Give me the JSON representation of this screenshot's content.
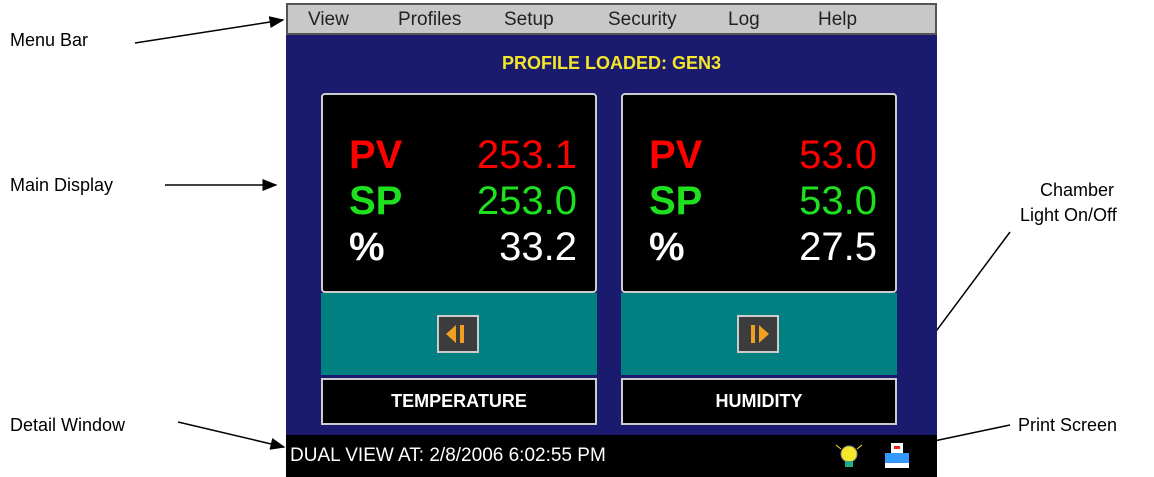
{
  "menu": [
    "View",
    "Profiles",
    "Setup",
    "Security",
    "Log",
    "Help"
  ],
  "profile_title": "PROFILE LOADED: GEN3",
  "panels": [
    {
      "pv_label": "PV",
      "pv": "253.1",
      "sp_label": "SP",
      "sp": "253.0",
      "pct_label": "%",
      "pct": "33.2",
      "name": "TEMPERATURE"
    },
    {
      "pv_label": "PV",
      "pv": "53.0",
      "sp_label": "SP",
      "sp": "53.0",
      "pct_label": "%",
      "pct": "27.5",
      "name": "HUMIDITY"
    }
  ],
  "status": "DUAL VIEW AT: 2/8/2006 6:02:55 PM",
  "annotations": {
    "menu_bar": "Menu Bar",
    "main_display": "Main Display",
    "detail_window": "Detail Window",
    "chamber_light_1": "Chamber",
    "chamber_light_2": "Light On/Off",
    "print_screen": "Print Screen"
  }
}
